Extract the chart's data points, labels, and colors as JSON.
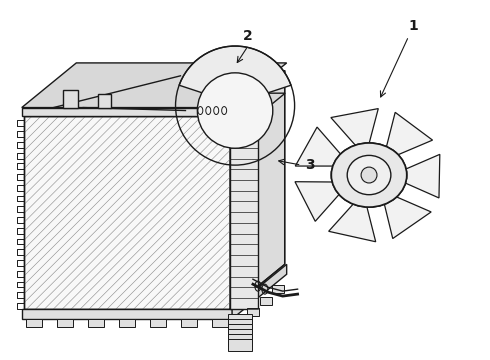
{
  "background_color": "#ffffff",
  "line_color": "#1a1a1a",
  "line_width": 1.0,
  "label_1": "1",
  "label_2": "2",
  "label_3": "3",
  "label_fontsize": 10,
  "figsize": [
    4.9,
    3.6
  ],
  "dpi": 100
}
